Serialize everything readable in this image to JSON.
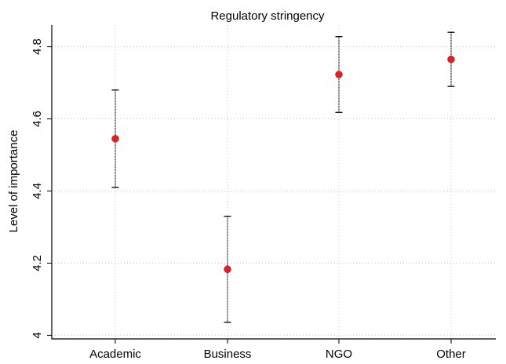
{
  "chart_data": {
    "type": "scatter",
    "title": "Regulatory stringency",
    "xlabel": "",
    "ylabel": "Level of importance",
    "categories": [
      "Academic",
      "Business",
      "NGO",
      "Other"
    ],
    "values": [
      4.545,
      4.183,
      4.723,
      4.765
    ],
    "lower": [
      4.41,
      4.036,
      4.618,
      4.69
    ],
    "upper": [
      4.68,
      4.33,
      4.828,
      4.84
    ],
    "ylim": [
      3.99,
      4.86
    ],
    "yticks": [
      "4",
      "4.2",
      "4.4",
      "4.6",
      "4.8"
    ],
    "grid": true,
    "marker_color": "#e01e24"
  }
}
